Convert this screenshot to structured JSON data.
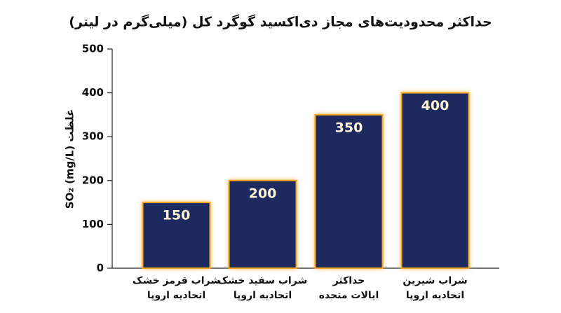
{
  "chart_data": {
    "type": "bar",
    "title": "حداکثر محدودیت‌های مجاز دی‌اکسید گوگرد کل (میلی‌گرم در لیتر)",
    "y_label": "غلظت SO₂ (mg/L)",
    "categories": [
      [
        "شراب قرمز خشک",
        "اتحادیه اروپا"
      ],
      [
        "شراب سفید خشک",
        "اتحادیه اروپا"
      ],
      [
        "حداکثر",
        "ایالات متحده"
      ],
      [
        "شراب شیرین",
        "اتحادیه اروپا"
      ]
    ],
    "values": [
      150,
      200,
      350,
      400
    ],
    "color": "#1c2b5e",
    "edge_color": "#f5a623",
    "ylim": [
      0,
      500
    ],
    "yticks": [
      0,
      100,
      200,
      300,
      400,
      500
    ]
  }
}
